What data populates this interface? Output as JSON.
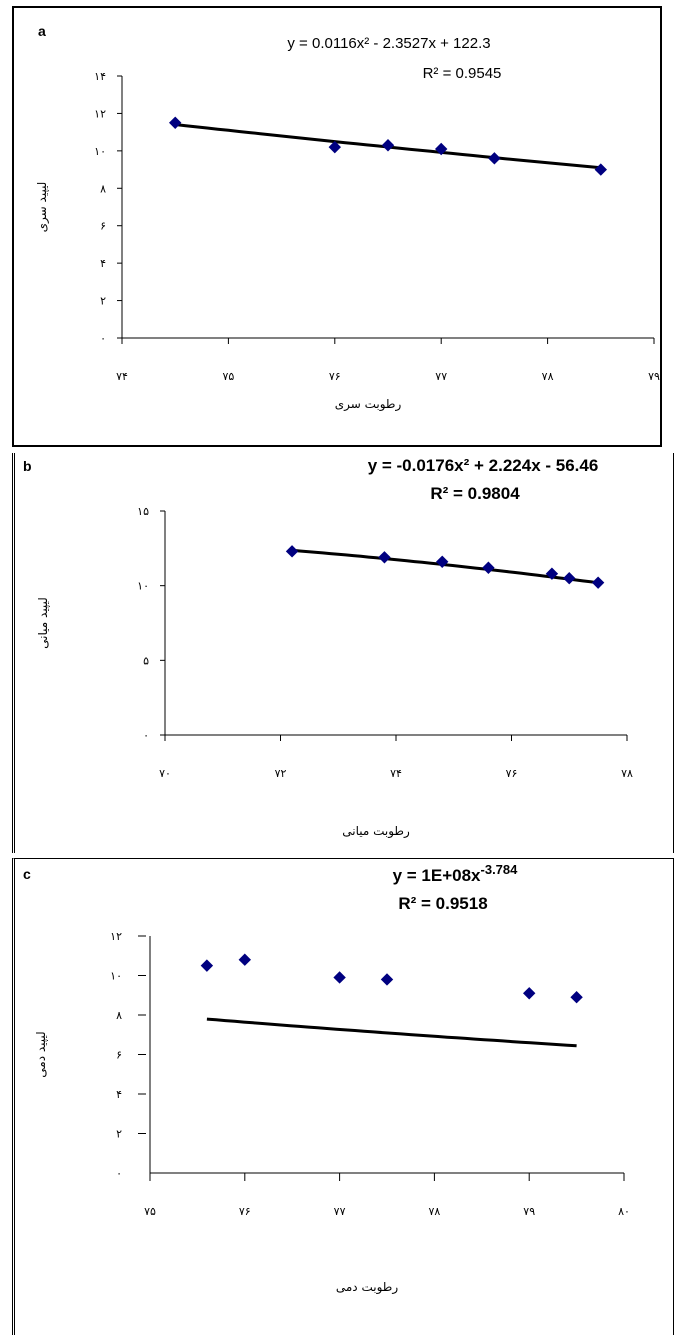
{
  "chart_data": [
    {
      "type": "scatter",
      "panel_label": "a",
      "equation": "y = 0.0116x² - 2.3527x + 122.3",
      "r2": "R² = 0.9545",
      "xlabel": "رطوبت سری",
      "ylabel": "لیپید سری",
      "xlim": [
        74,
        79
      ],
      "ylim": [
        0,
        14
      ],
      "x_ticks": [
        74,
        75,
        76,
        77,
        78,
        79
      ],
      "y_ticks": [
        0,
        2,
        4,
        6,
        8,
        10,
        12,
        14
      ],
      "x_tick_labels": [
        "۷۴",
        "۷۵",
        "۷۶",
        "۷۷",
        "۷۸",
        "۷۹"
      ],
      "y_tick_labels": [
        "۰",
        "۲",
        "۴",
        "۶",
        "۸",
        "۱۰",
        "۱۲",
        "۱۴"
      ],
      "points": [
        {
          "x": 74.5,
          "y": 11.5
        },
        {
          "x": 76.0,
          "y": 10.2
        },
        {
          "x": 76.5,
          "y": 10.3
        },
        {
          "x": 77.0,
          "y": 10.1
        },
        {
          "x": 77.5,
          "y": 9.6
        },
        {
          "x": 78.5,
          "y": 9.0
        }
      ],
      "trend": {
        "kind": "poly2",
        "coeffs": [
          0.0116,
          -2.3527,
          122.3
        ]
      },
      "marker_color": "#000080"
    },
    {
      "type": "scatter",
      "panel_label": "b",
      "equation": "y = -0.0176x² + 2.224x - 56.46",
      "r2": "R² = 0.9804",
      "xlabel": "رطوبت میانی",
      "ylabel": "لیپید میانی",
      "xlim": [
        70,
        78
      ],
      "ylim": [
        0,
        15
      ],
      "x_ticks": [
        70,
        72,
        74,
        76,
        78
      ],
      "y_ticks": [
        0,
        5,
        10,
        15
      ],
      "x_tick_labels": [
        "۷۰",
        "۷۲",
        "۷۴",
        "۷۶",
        "۷۸"
      ],
      "y_tick_labels": [
        "۰",
        "۵",
        "۱۰",
        "۱۵"
      ],
      "points": [
        {
          "x": 72.2,
          "y": 12.3
        },
        {
          "x": 73.8,
          "y": 11.9
        },
        {
          "x": 74.8,
          "y": 11.6
        },
        {
          "x": 75.6,
          "y": 11.2
        },
        {
          "x": 76.7,
          "y": 10.8
        },
        {
          "x": 77.0,
          "y": 10.5
        },
        {
          "x": 77.5,
          "y": 10.2
        }
      ],
      "trend": {
        "kind": "poly2",
        "coeffs": [
          -0.0176,
          2.224,
          -56.46
        ]
      },
      "marker_color": "#000080"
    },
    {
      "type": "scatter",
      "panel_label": "c",
      "equation": "y = 1E+08x",
      "equation_exponent": "-3.784",
      "r2": "R² = 0.9518",
      "xlabel": "رطوبت دمی",
      "ylabel": "لیپید دمی",
      "xlim": [
        75,
        80
      ],
      "ylim": [
        0,
        12
      ],
      "x_ticks": [
        75,
        76,
        77,
        78,
        79,
        80
      ],
      "y_ticks": [
        0,
        2,
        4,
        6,
        8,
        10,
        12
      ],
      "x_tick_labels": [
        "۷۵",
        "۷۶",
        "۷۷",
        "۷۸",
        "۷۹",
        "۸۰"
      ],
      "y_tick_labels": [
        "۰",
        "۲",
        "۴",
        "۶",
        "۸",
        "۱۰",
        "۱۲"
      ],
      "points": [
        {
          "x": 75.6,
          "y": 10.5
        },
        {
          "x": 76.0,
          "y": 10.8
        },
        {
          "x": 77.0,
          "y": 9.9
        },
        {
          "x": 77.5,
          "y": 9.8
        },
        {
          "x": 79.0,
          "y": 9.1
        },
        {
          "x": 79.5,
          "y": 8.9
        }
      ],
      "trend": {
        "kind": "power",
        "a": 100000000,
        "b": -3.784
      },
      "marker_color": "#000080"
    }
  ]
}
